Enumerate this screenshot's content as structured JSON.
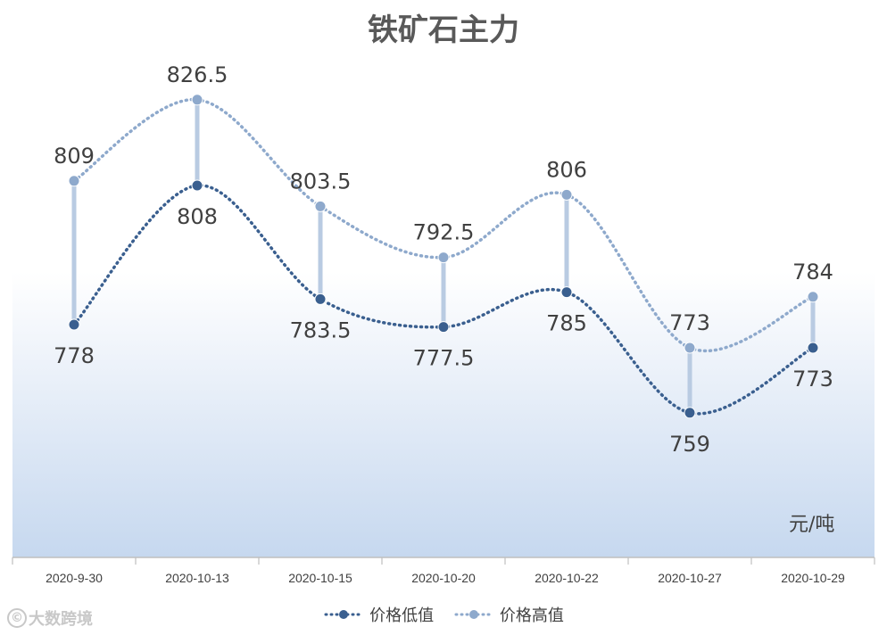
{
  "chart_data": {
    "type": "line",
    "title": "铁矿石主力",
    "unit_label": "元/吨",
    "categories": [
      "2020-9-30",
      "2020-10-13",
      "2020-10-15",
      "2020-10-20",
      "2020-10-22",
      "2020-10-27",
      "2020-10-29"
    ],
    "series": [
      {
        "name": "价格低值",
        "values": [
          778,
          808,
          783.5,
          777.5,
          785,
          759,
          773
        ],
        "labels": [
          "778",
          "808",
          "783.5",
          "777.5",
          "785",
          "759",
          "773"
        ],
        "color": "#3a5f8f"
      },
      {
        "name": "价格高值",
        "values": [
          809,
          826.5,
          803.5,
          792.5,
          806,
          773,
          784
        ],
        "labels": [
          "809",
          "826.5",
          "803.5",
          "792.5",
          "806",
          "773",
          "784"
        ],
        "color": "#8ea9cc"
      }
    ],
    "high_low_lines": true,
    "legend_position": "bottom",
    "grid": false,
    "background": "gradient-blue"
  },
  "watermark": {
    "text": "大数跨境"
  }
}
